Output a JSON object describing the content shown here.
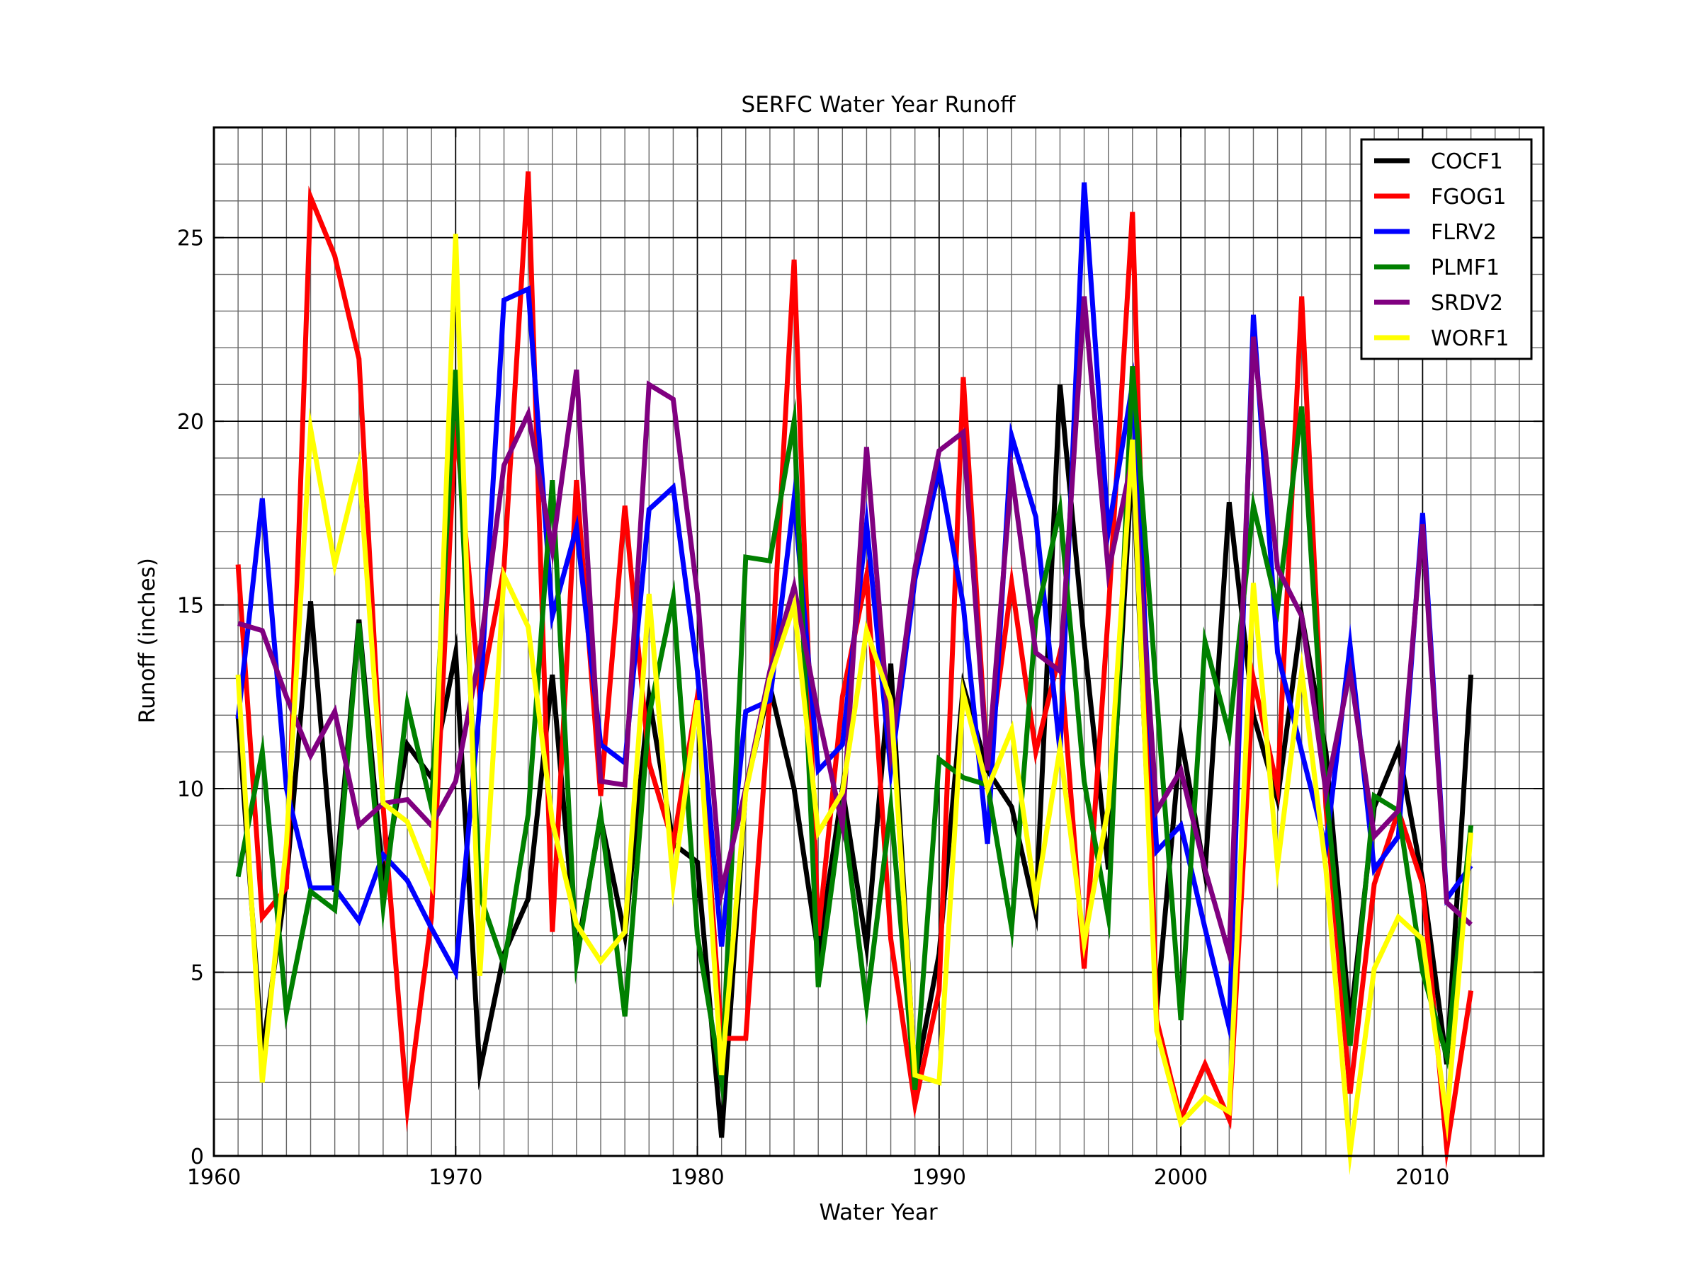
{
  "chart_data": {
    "type": "line",
    "title": "SERFC Water Year Runoff",
    "xlabel": "Water Year",
    "ylabel": "Runoff (inches)",
    "xlim": [
      1960,
      2015
    ],
    "ylim": [
      0,
      28
    ],
    "x_ticks": [
      1960,
      1970,
      1980,
      1990,
      2000,
      2010
    ],
    "y_ticks": [
      0,
      5,
      10,
      15,
      20,
      25
    ],
    "x_minor_step": 1,
    "y_minor_step": 1,
    "grid": true,
    "legend": "top-right",
    "x": [
      1961,
      1962,
      1963,
      1964,
      1965,
      1966,
      1967,
      1968,
      1969,
      1970,
      1971,
      1972,
      1973,
      1974,
      1975,
      1976,
      1977,
      1978,
      1979,
      1980,
      1981,
      1982,
      1983,
      1984,
      1985,
      1986,
      1987,
      1988,
      1989,
      1990,
      1991,
      1992,
      1993,
      1994,
      1995,
      1996,
      1997,
      1998,
      1999,
      2000,
      2001,
      2002,
      2003,
      2004,
      2005,
      2006,
      2007,
      2008,
      2009,
      2010,
      2011,
      2012
    ],
    "series": [
      {
        "name": "COCF1",
        "color": "#000000",
        "values": [
          12.0,
          2.8,
          7.5,
          15.1,
          7.2,
          14.6,
          7.5,
          11.2,
          10.3,
          13.7,
          2.3,
          5.5,
          7.0,
          13.1,
          5.5,
          9.2,
          6.0,
          12.5,
          8.5,
          8.0,
          0.5,
          10.0,
          12.8,
          10.0,
          5.5,
          10.0,
          5.7,
          13.4,
          2.0,
          5.5,
          12.8,
          10.5,
          9.5,
          6.6,
          21.0,
          14.0,
          7.8,
          19.0,
          4.0,
          11.4,
          7.7,
          17.8,
          12.0,
          9.7,
          14.7,
          11.0,
          3.6,
          9.5,
          11.1,
          7.5,
          2.5,
          13.1
        ]
      },
      {
        "name": "FGOG1",
        "color": "#ff0000",
        "values": [
          16.1,
          6.5,
          7.3,
          26.1,
          24.5,
          21.7,
          9.5,
          1.3,
          6.5,
          20.0,
          12.5,
          16.0,
          26.8,
          6.1,
          18.4,
          9.8,
          17.7,
          10.7,
          8.5,
          12.5,
          3.2,
          3.2,
          12.5,
          24.4,
          6.0,
          12.5,
          15.8,
          5.9,
          1.4,
          4.5,
          21.2,
          10.5,
          15.6,
          11.0,
          13.7,
          5.1,
          14.8,
          25.7,
          3.7,
          1.0,
          2.5,
          1.0,
          13.0,
          10.0,
          23.4,
          9.5,
          1.7,
          7.4,
          9.4,
          7.4,
          0.2,
          4.5
        ]
      },
      {
        "name": "FLRV2",
        "color": "#0000ff",
        "values": [
          11.9,
          17.9,
          10.0,
          7.3,
          7.3,
          6.4,
          8.2,
          7.5,
          6.2,
          5.0,
          12.3,
          23.3,
          23.6,
          14.7,
          17.1,
          11.2,
          10.7,
          17.6,
          18.2,
          13.2,
          5.7,
          12.1,
          12.4,
          17.9,
          10.5,
          11.2,
          17.2,
          10.5,
          15.7,
          18.7,
          15.0,
          8.5,
          19.6,
          17.4,
          11.0,
          26.5,
          17.0,
          21.0,
          8.3,
          9.0,
          6.2,
          3.5,
          22.9,
          13.7,
          11.0,
          8.4,
          13.9,
          7.8,
          8.7,
          17.5,
          7.0,
          7.9
        ]
      },
      {
        "name": "PLMF1",
        "color": "#008000",
        "values": [
          7.6,
          11.0,
          3.9,
          7.2,
          6.7,
          14.5,
          6.8,
          12.3,
          9.5,
          21.4,
          7.1,
          5.2,
          9.3,
          18.4,
          5.3,
          9.3,
          3.8,
          12.0,
          15.2,
          6.0,
          2.0,
          16.3,
          16.2,
          20.0,
          4.6,
          9.5,
          4.1,
          9.5,
          1.8,
          10.8,
          10.3,
          10.1,
          6.2,
          14.6,
          17.6,
          10.2,
          6.5,
          21.5,
          12.5,
          3.7,
          14.0,
          11.5,
          17.7,
          14.9,
          20.4,
          10.0,
          3.0,
          9.8,
          9.4,
          5.0,
          2.7,
          9.0
        ]
      },
      {
        "name": "SRDV2",
        "color": "#800080",
        "values": [
          14.5,
          14.3,
          12.5,
          10.9,
          12.1,
          9.0,
          9.6,
          9.7,
          9.0,
          10.2,
          13.7,
          18.8,
          20.2,
          16.5,
          21.4,
          10.2,
          10.1,
          21.0,
          20.6,
          15.3,
          7.2,
          10.0,
          13.2,
          15.5,
          12.0,
          9.0,
          19.3,
          11.0,
          16.0,
          19.2,
          19.7,
          10.5,
          18.6,
          13.7,
          13.2,
          23.4,
          15.9,
          19.0,
          9.4,
          10.5,
          7.8,
          5.5,
          22.3,
          16.0,
          14.7,
          9.9,
          13.2,
          8.7,
          9.4,
          17.2,
          6.9,
          6.3
        ]
      },
      {
        "name": "WORF1",
        "color": "#ffff00",
        "values": [
          13.1,
          2.0,
          8.5,
          19.8,
          16.1,
          18.8,
          9.6,
          9.1,
          7.4,
          25.1,
          4.9,
          15.8,
          14.4,
          9.1,
          6.3,
          5.3,
          6.1,
          15.3,
          7.4,
          12.4,
          2.2,
          9.9,
          13.0,
          15.0,
          8.8,
          9.9,
          14.3,
          12.4,
          2.2,
          2.0,
          12.6,
          10.0,
          11.6,
          7.0,
          11.1,
          5.8,
          9.5,
          19.5,
          3.4,
          0.9,
          1.6,
          1.2,
          15.6,
          7.9,
          13.2,
          7.8,
          0.1,
          5.1,
          6.5,
          5.9,
          1.0,
          8.8
        ]
      }
    ]
  }
}
